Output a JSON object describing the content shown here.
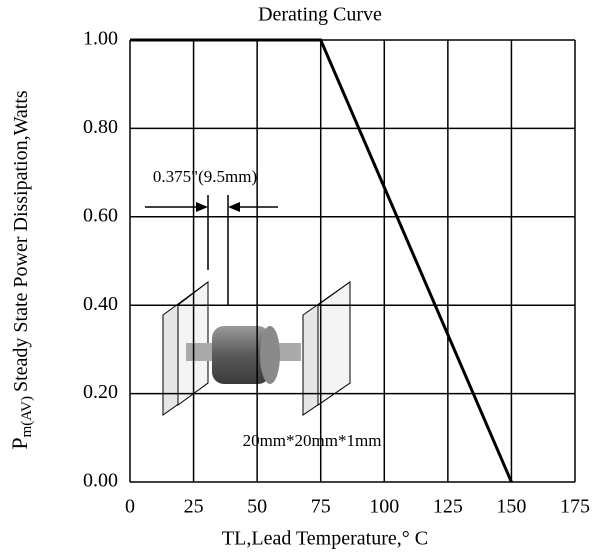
{
  "chart_data": {
    "type": "line",
    "title": "Derating Curve",
    "xlabel": "TL,Lead Temperature,°  C",
    "ylabel": {
      "symbol": "P",
      "subscript": "m(AV)",
      "text": "Steady State Power Dissipation,Watts"
    },
    "x": [
      0,
      75,
      150
    ],
    "values": [
      1,
      1,
      0
    ],
    "color": "#000000",
    "xlim": [
      0,
      175
    ],
    "xticks": [
      0,
      25,
      50,
      75,
      100,
      125,
      150,
      175
    ],
    "ylim": [
      0,
      1
    ],
    "yticks": [
      {
        "value": 0,
        "label": "0.00"
      },
      {
        "value": 0.2,
        "label": "0.20"
      },
      {
        "value": 0.4,
        "label": "0.40"
      },
      {
        "value": 0.6,
        "label": "0.60"
      },
      {
        "value": 0.8,
        "label": "0.80"
      },
      {
        "value": 1,
        "label": "1.00"
      }
    ],
    "grid": true,
    "annotations": [
      "0.375\"(9.5mm)",
      "20mm*20mm*1mm"
    ]
  }
}
